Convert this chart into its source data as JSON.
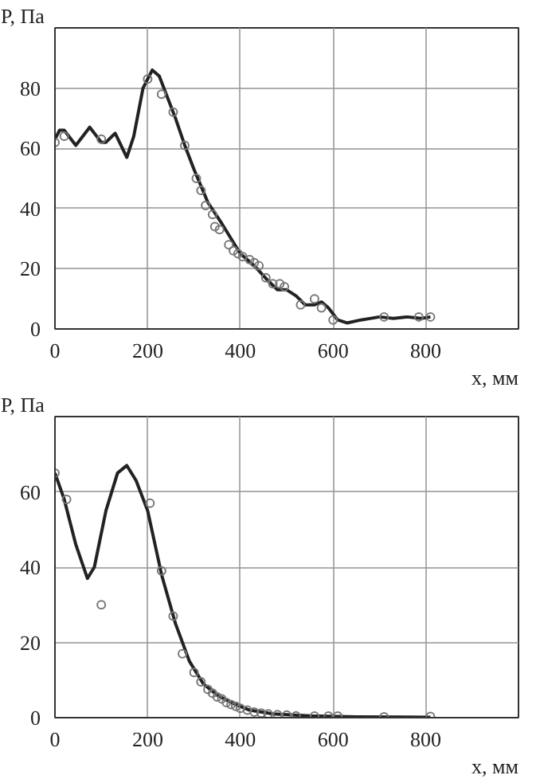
{
  "chart_data": [
    {
      "type": "line",
      "xlabel": "x, мм",
      "ylabel": "P, Па",
      "xlim": [
        0,
        1000
      ],
      "ylim": [
        0,
        100
      ],
      "xticks": [
        0,
        200,
        400,
        600,
        800
      ],
      "yticks": [
        0,
        20,
        40,
        60,
        80
      ],
      "grid": true,
      "series": [
        {
          "color": "#222222",
          "line_style": "solid",
          "x": [
            0,
            10,
            20,
            45,
            75,
            100,
            110,
            130,
            155,
            170,
            190,
            210,
            225,
            260,
            280,
            300,
            330,
            360,
            400,
            430,
            460,
            480,
            500,
            520,
            540,
            560,
            575,
            590,
            610,
            630,
            660,
            700,
            730,
            760,
            790,
            810
          ],
          "values": [
            63,
            66,
            66,
            61,
            67,
            62,
            62,
            65,
            57,
            64,
            80,
            86,
            84,
            70,
            61,
            53,
            42,
            35,
            25,
            21,
            16,
            13,
            13,
            11,
            8,
            8,
            9,
            7,
            3,
            2,
            3,
            4,
            3.5,
            4,
            3.5,
            4
          ]
        },
        {
          "type": "scatter",
          "color": "#777777",
          "marker": "circle",
          "x": [
            0,
            20,
            100,
            200,
            230,
            255,
            280,
            305,
            315,
            325,
            340,
            345,
            355,
            375,
            385,
            395,
            405,
            420,
            430,
            440,
            455,
            470,
            485,
            495,
            530,
            560,
            575,
            600,
            710,
            785,
            810
          ],
          "values": [
            62,
            64,
            63,
            83,
            78,
            72,
            61,
            50,
            46,
            41,
            38,
            34,
            33,
            28,
            26,
            25,
            24,
            23,
            22,
            21,
            17,
            15,
            15,
            14,
            8,
            10,
            7,
            3,
            4,
            4,
            4
          ]
        }
      ]
    },
    {
      "type": "line",
      "xlabel": "x, мм",
      "ylabel": "P, Па",
      "xlim": [
        0,
        1000
      ],
      "ylim": [
        0,
        80
      ],
      "xticks": [
        0,
        200,
        400,
        600,
        800
      ],
      "yticks": [
        0,
        20,
        40,
        60
      ],
      "grid": true,
      "series": [
        {
          "color": "#222222",
          "line_style": "solid",
          "x": [
            0,
            20,
            45,
            70,
            85,
            110,
            135,
            155,
            175,
            200,
            230,
            260,
            290,
            320,
            350,
            380,
            420,
            470,
            550,
            650,
            810
          ],
          "values": [
            65,
            58,
            46,
            37,
            40,
            55,
            65,
            67,
            63,
            55,
            38,
            25,
            15,
            9,
            6,
            4,
            2,
            1,
            0.5,
            0.2,
            0.1
          ]
        },
        {
          "type": "scatter",
          "color": "#777777",
          "marker": "circle",
          "x": [
            0,
            25,
            100,
            205,
            230,
            255,
            275,
            300,
            315,
            330,
            340,
            350,
            360,
            370,
            380,
            390,
            400,
            415,
            430,
            445,
            460,
            480,
            500,
            520,
            560,
            590,
            610,
            710,
            810
          ],
          "values": [
            65,
            58,
            30,
            57,
            39,
            27,
            17,
            12,
            9.5,
            7.5,
            6.5,
            5.5,
            5,
            4,
            3.5,
            3,
            2.5,
            2,
            1.5,
            1.2,
            1,
            0.8,
            0.7,
            0.5,
            0.4,
            0.4,
            0.4,
            0.2,
            0.3
          ]
        }
      ]
    }
  ]
}
